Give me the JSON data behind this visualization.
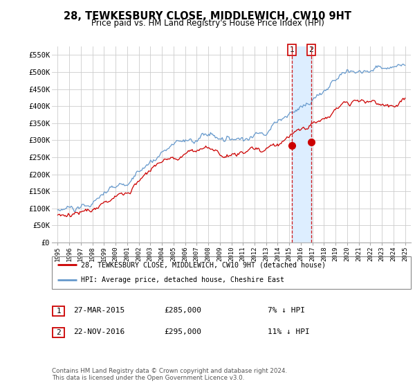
{
  "title": "28, TEWKESBURY CLOSE, MIDDLEWICH, CW10 9HT",
  "subtitle": "Price paid vs. HM Land Registry's House Price Index (HPI)",
  "legend_line1": "28, TEWKESBURY CLOSE, MIDDLEWICH, CW10 9HT (detached house)",
  "legend_line2": "HPI: Average price, detached house, Cheshire East",
  "table_rows": [
    {
      "num": "1",
      "date": "27-MAR-2015",
      "price": "£285,000",
      "hpi": "7% ↓ HPI"
    },
    {
      "num": "2",
      "date": "22-NOV-2016",
      "price": "£295,000",
      "hpi": "11% ↓ HPI"
    }
  ],
  "footnote": "Contains HM Land Registry data © Crown copyright and database right 2024.\nThis data is licensed under the Open Government Licence v3.0.",
  "sale1_year": 2015.23,
  "sale1_price": 285000,
  "sale2_year": 2016.9,
  "sale2_price": 295000,
  "ylim": [
    0,
    575000
  ],
  "yticks": [
    0,
    50000,
    100000,
    150000,
    200000,
    250000,
    300000,
    350000,
    400000,
    450000,
    500000,
    550000
  ],
  "ytick_labels": [
    "£0",
    "£50K",
    "£100K",
    "£150K",
    "£200K",
    "£250K",
    "£300K",
    "£350K",
    "£400K",
    "£450K",
    "£500K",
    "£550K"
  ],
  "price_color": "#cc0000",
  "hpi_color": "#6699cc",
  "background_color": "#ffffff",
  "grid_color": "#cccccc",
  "shade_color": "#ddeeff"
}
